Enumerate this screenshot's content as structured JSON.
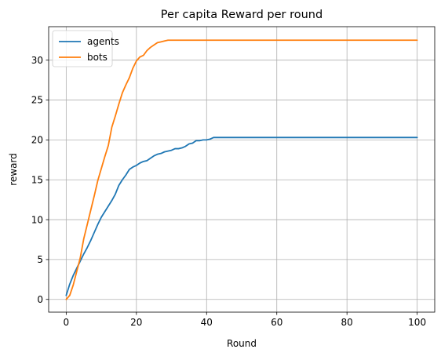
{
  "chart_data": {
    "type": "line",
    "title": "Per capita Reward per round",
    "xlabel": "Round",
    "ylabel": "reward",
    "xlim": [
      -5,
      105
    ],
    "ylim": [
      -1.6,
      34.2
    ],
    "xticks": [
      0,
      20,
      40,
      60,
      80,
      100
    ],
    "yticks": [
      0,
      5,
      10,
      15,
      20,
      25,
      30
    ],
    "grid": true,
    "legend": {
      "placement": "top-left",
      "entries": [
        "agents",
        "bots"
      ]
    },
    "x": [
      0,
      1,
      2,
      3,
      4,
      5,
      6,
      7,
      8,
      9,
      10,
      11,
      12,
      13,
      14,
      15,
      16,
      17,
      18,
      19,
      20,
      21,
      22,
      23,
      24,
      25,
      26,
      27,
      28,
      29,
      30,
      31,
      32,
      33,
      34,
      35,
      36,
      37,
      38,
      39,
      40,
      41,
      42,
      43,
      44,
      45,
      46,
      47,
      48,
      49,
      50,
      60,
      70,
      80,
      90,
      100
    ],
    "series": [
      {
        "name": "agents",
        "color": "#1f77b4",
        "values": [
          0.5,
          1.9,
          3.0,
          3.9,
          4.8,
          5.7,
          6.5,
          7.4,
          8.4,
          9.4,
          10.3,
          11.0,
          11.7,
          12.4,
          13.2,
          14.3,
          15.0,
          15.6,
          16.3,
          16.6,
          16.8,
          17.1,
          17.3,
          17.4,
          17.7,
          18.0,
          18.2,
          18.3,
          18.5,
          18.6,
          18.7,
          18.9,
          18.9,
          19.0,
          19.2,
          19.5,
          19.6,
          19.9,
          19.9,
          20.0,
          20.0,
          20.1,
          20.3,
          20.3,
          20.3,
          20.3,
          20.3,
          20.3,
          20.3,
          20.3,
          20.3,
          20.3,
          20.3,
          20.3,
          20.3,
          20.3
        ]
      },
      {
        "name": "bots",
        "color": "#ff7f0e",
        "values": [
          0.0,
          0.5,
          1.8,
          3.5,
          5.2,
          7.6,
          9.4,
          11.2,
          13.0,
          14.9,
          16.4,
          17.9,
          19.3,
          21.6,
          23.0,
          24.5,
          25.9,
          26.9,
          27.8,
          29.0,
          29.9,
          30.4,
          30.6,
          31.2,
          31.6,
          31.9,
          32.2,
          32.3,
          32.4,
          32.5,
          32.5,
          32.5,
          32.5,
          32.5,
          32.5,
          32.5,
          32.5,
          32.5,
          32.5,
          32.5,
          32.5,
          32.5,
          32.5,
          32.5,
          32.5,
          32.5,
          32.5,
          32.5,
          32.5,
          32.5,
          32.5,
          32.5,
          32.5,
          32.5,
          32.5,
          32.5
        ]
      }
    ]
  }
}
